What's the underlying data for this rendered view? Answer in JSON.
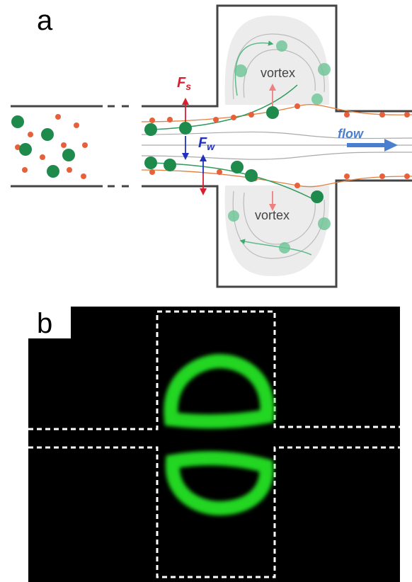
{
  "panel_a": {
    "label": "a",
    "forces": [
      {
        "symbol": "F",
        "subscript": "s"
      },
      {
        "symbol": "F",
        "subscript": "w"
      }
    ],
    "vortex_labels": [
      "vortex",
      "vortex"
    ],
    "flow_label": "flow"
  },
  "panel_b": {
    "label": "b"
  }
}
